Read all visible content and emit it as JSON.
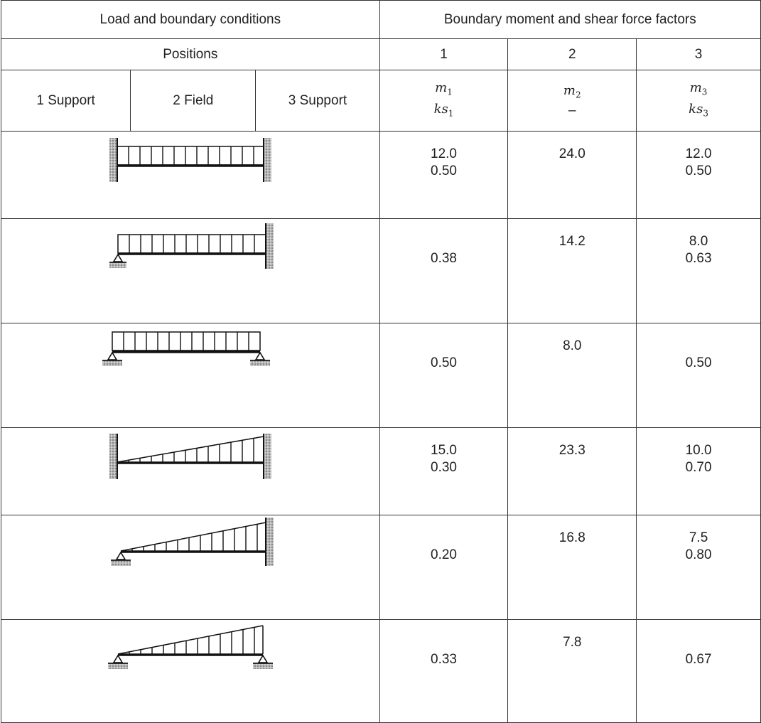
{
  "header": {
    "left_title": "Load and boundary conditions",
    "right_title": "Boundary moment and shear force factors",
    "positions_label": "Positions",
    "col1": "1",
    "col2": "2",
    "col3": "3",
    "support1": "1 Support",
    "field2": "2 Field",
    "support3": "3 Support",
    "f1_top": "m",
    "f1_top_sub": "1",
    "f1_bot": "ks",
    "f1_bot_sub": "1",
    "f2_top": "m",
    "f2_top_sub": "2",
    "f2_bot": "–",
    "f3_top": "m",
    "f3_top_sub": "3",
    "f3_bot": "ks",
    "f3_bot_sub": "3"
  },
  "rows": [
    {
      "case": "uniform load, fixed–fixed",
      "c1a": "12.0",
      "c1b": "0.50",
      "c2": "24.0",
      "c3a": "12.0",
      "c3b": "0.50"
    },
    {
      "case": "uniform load, pinned–fixed",
      "c1a": "",
      "c1b": "0.38",
      "c2": "14.2",
      "c3a": "8.0",
      "c3b": "0.63"
    },
    {
      "case": "uniform load, pinned–pinned",
      "c1a": "",
      "c1b": "0.50",
      "c2": "8.0",
      "c3a": "",
      "c3b": "0.50"
    },
    {
      "case": "triangular load, fixed–fixed",
      "c1a": "15.0",
      "c1b": "0.30",
      "c2": "23.3",
      "c3a": "10.0",
      "c3b": "0.70"
    },
    {
      "case": "triangular load, pinned–fixed",
      "c1a": "",
      "c1b": "0.20",
      "c2": "16.8",
      "c3a": "7.5",
      "c3b": "0.80"
    },
    {
      "case": "triangular load, pinned–pinned",
      "c1a": "",
      "c1b": "0.33",
      "c2": "7.8",
      "c3a": "",
      "c3b": "0.67"
    }
  ]
}
